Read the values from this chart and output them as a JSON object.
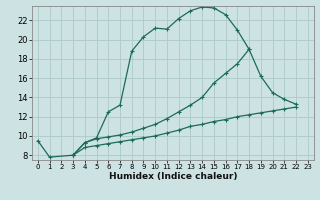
{
  "xlabel": "Humidex (Indice chaleur)",
  "background_color": "#cde3e3",
  "grid_color": "#b0cccc",
  "line_color": "#1a6b5a",
  "xlim": [
    -0.5,
    23.5
  ],
  "ylim": [
    7.5,
    23.5
  ],
  "xticks": [
    0,
    1,
    2,
    3,
    4,
    5,
    6,
    7,
    8,
    9,
    10,
    11,
    12,
    13,
    14,
    15,
    16,
    17,
    18,
    19,
    20,
    21,
    22,
    23
  ],
  "yticks": [
    8,
    10,
    12,
    14,
    16,
    18,
    20,
    22
  ],
  "series": [
    {
      "x": [
        0,
        1,
        3,
        4,
        5,
        6,
        7,
        8,
        9,
        10,
        11,
        12,
        13,
        14,
        15,
        16,
        17,
        18
      ],
      "y": [
        9.5,
        7.8,
        8.0,
        9.3,
        9.8,
        12.5,
        13.2,
        18.8,
        20.3,
        21.2,
        21.1,
        22.2,
        23.0,
        23.4,
        23.3,
        22.6,
        21.0,
        19.0
      ]
    },
    {
      "x": [
        3,
        4,
        5,
        6,
        7,
        8,
        9,
        10,
        11,
        12,
        13,
        14,
        15,
        16,
        17,
        18,
        19,
        20,
        21,
        22
      ],
      "y": [
        8.0,
        9.3,
        9.7,
        9.9,
        10.1,
        10.4,
        10.8,
        11.2,
        11.8,
        12.5,
        13.2,
        14.0,
        15.5,
        16.5,
        17.5,
        19.0,
        16.2,
        14.5,
        13.8,
        13.3
      ]
    },
    {
      "x": [
        3,
        4,
        5,
        6,
        7,
        8,
        9,
        10,
        11,
        12,
        13,
        14,
        15,
        16,
        17,
        18,
        19,
        20,
        21,
        22
      ],
      "y": [
        8.0,
        8.8,
        9.0,
        9.2,
        9.4,
        9.6,
        9.8,
        10.0,
        10.3,
        10.6,
        11.0,
        11.2,
        11.5,
        11.7,
        12.0,
        12.2,
        12.4,
        12.6,
        12.8,
        13.0
      ]
    }
  ]
}
